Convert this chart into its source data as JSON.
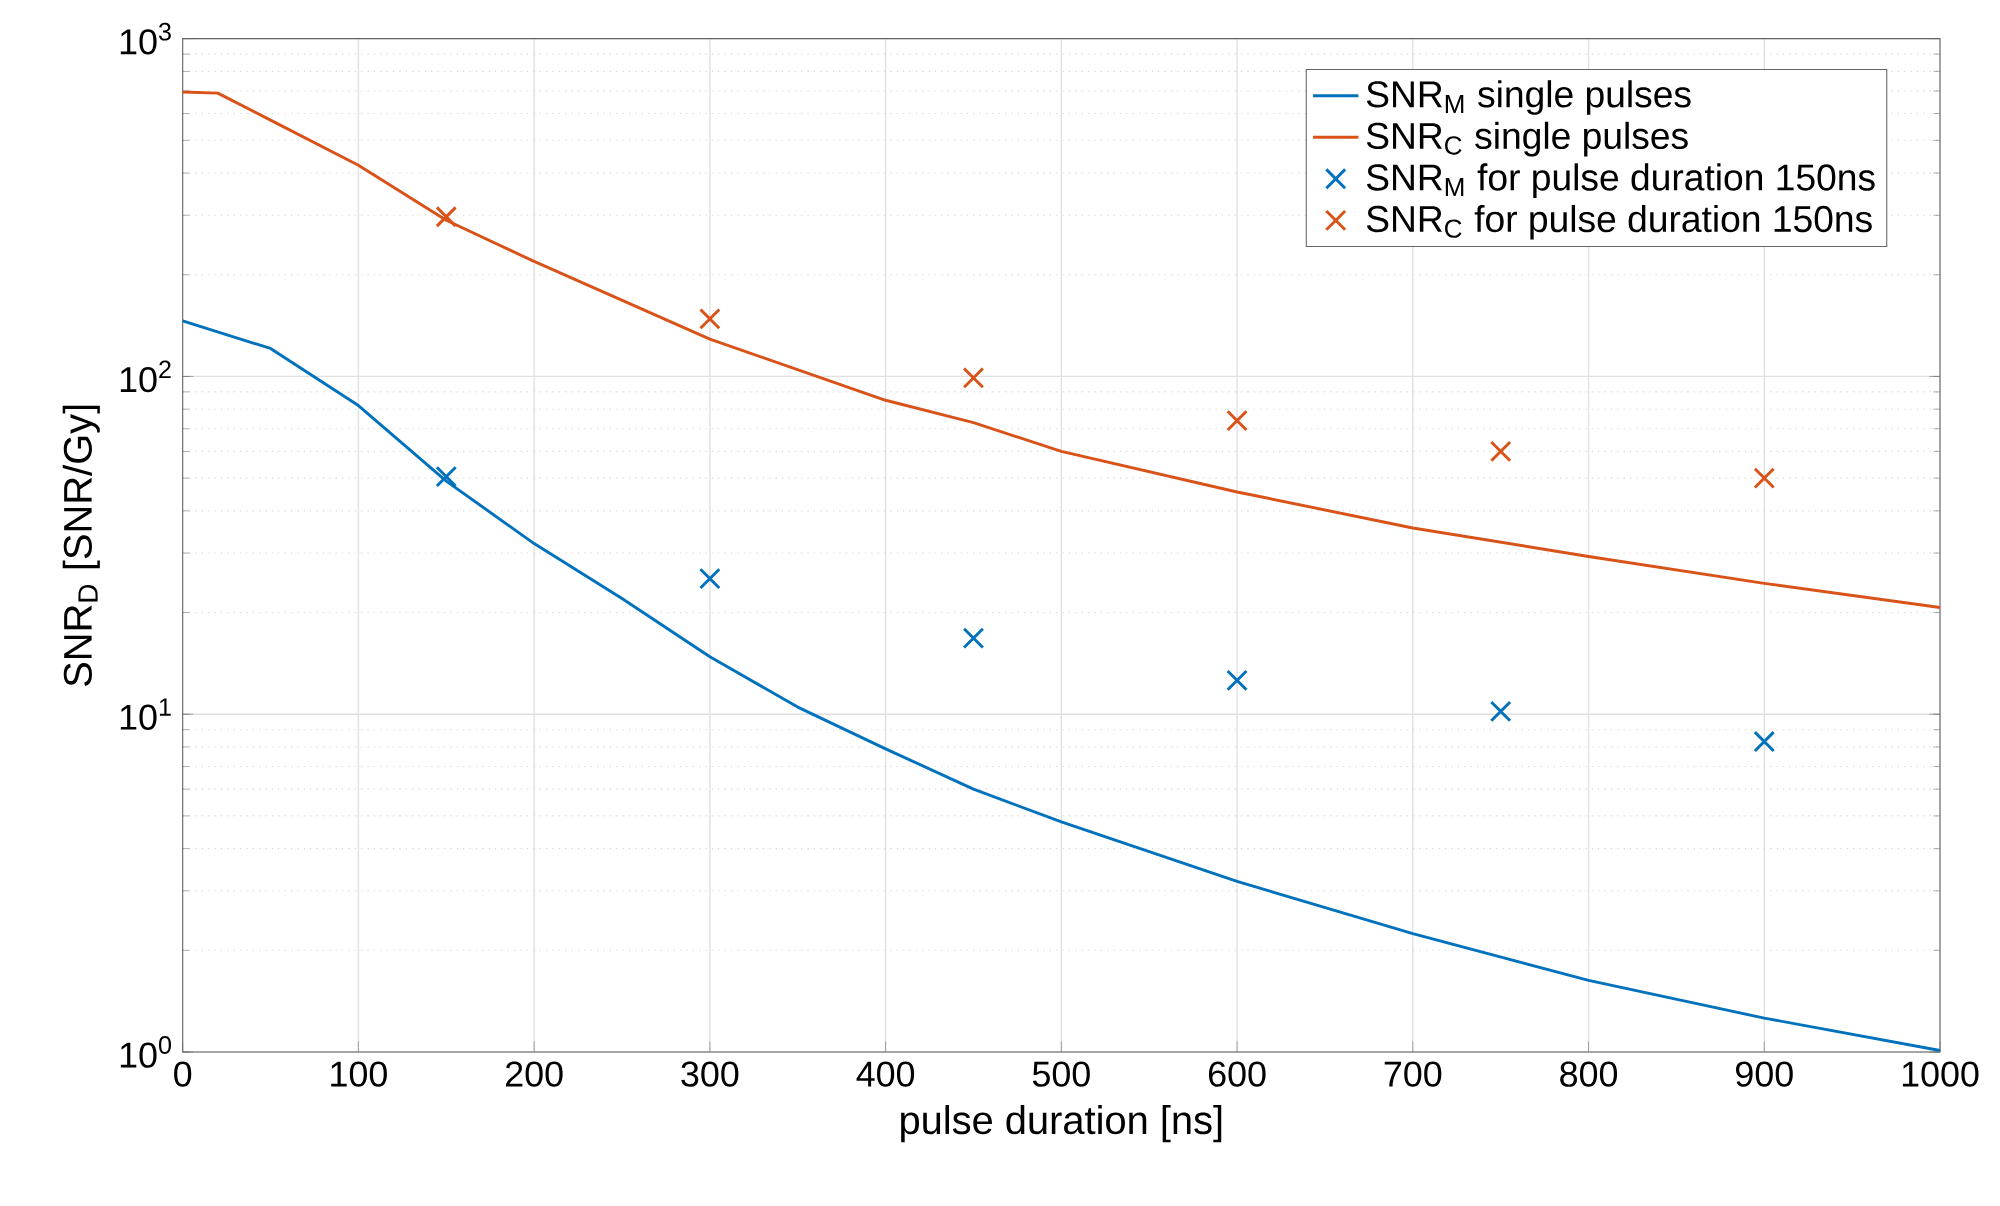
{
  "chart_data": {
    "type": "line",
    "xlabel": "pulse duration [ns]",
    "ylabel": "SNR$_{D}$ [SNR/Gy]",
    "log": "y",
    "grid": true,
    "legend": "top right",
    "xlim": [
      0,
      1000
    ],
    "xticks": [
      0,
      100,
      200,
      300,
      400,
      500,
      600,
      700,
      800,
      900,
      1000
    ],
    "ylim": [
      1,
      1000
    ],
    "yticks": [
      {
        "value": 1,
        "label": "10$^{0}$"
      },
      {
        "value": 10,
        "label": "10$^{1}$"
      },
      {
        "value": 100,
        "label": "10$^{2}$"
      },
      {
        "value": 1000,
        "label": "10$^{3}$"
      }
    ],
    "series": [
      {
        "name": "SNR$_{M}$ single pulses",
        "color": "#0072bd",
        "marker": "none",
        "x": [
          0,
          50,
          100,
          150,
          200,
          250,
          300,
          350,
          400,
          450,
          500,
          600,
          700,
          800,
          900,
          1000
        ],
        "values": [
          146,
          121,
          82,
          49,
          32,
          22,
          14.8,
          10.5,
          7.9,
          6.0,
          4.8,
          3.2,
          2.24,
          1.63,
          1.26,
          1.01
        ]
      },
      {
        "name": "SNR$_{C}$ single pulses",
        "color": "#d95319",
        "marker": "none",
        "x": [
          0,
          20,
          50,
          100,
          150,
          200,
          300,
          400,
          450,
          500,
          600,
          700,
          800,
          900,
          1000
        ],
        "values": [
          695,
          690,
          574,
          422,
          290,
          219,
          129,
          85,
          73,
          60,
          45.5,
          35.6,
          29.3,
          24.4,
          20.7
        ]
      },
      {
        "name": "SNR$_{M}$ for pulse duration 150ns",
        "type": "scatter",
        "color": "#0072bd",
        "marker": "cross",
        "x": [
          150,
          300,
          450,
          600,
          750,
          900
        ],
        "values": [
          50.5,
          25.2,
          16.8,
          12.6,
          10.2,
          8.3
        ]
      },
      {
        "name": "SNR$_{C}$ for pulse duration 150ns",
        "type": "scatter",
        "color": "#d95319",
        "marker": "cross",
        "x": [
          150,
          300,
          450,
          600,
          750,
          900
        ],
        "values": [
          297,
          148,
          99,
          74,
          60,
          50
        ]
      }
    ]
  }
}
